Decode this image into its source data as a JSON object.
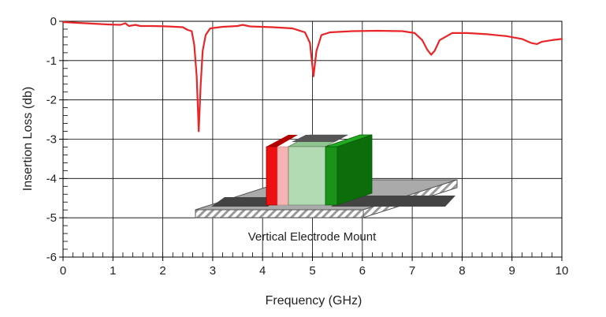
{
  "chart_data": {
    "type": "line",
    "title": "",
    "xlabel": "Frequency (GHz)",
    "ylabel": "Insertion Loss (db)",
    "xlim": [
      0,
      10
    ],
    "ylim": [
      -6,
      0
    ],
    "x_ticks": [
      0,
      1,
      2,
      3,
      4,
      5,
      6,
      7,
      8,
      9,
      10
    ],
    "y_ticks": [
      0,
      -1,
      -2,
      -3,
      -4,
      -5,
      -6
    ],
    "grid": true,
    "legend": "none",
    "series": [
      {
        "color": "#e8262a",
        "points": [
          [
            0.0,
            -0.02
          ],
          [
            0.3,
            -0.04
          ],
          [
            0.6,
            -0.06
          ],
          [
            0.9,
            -0.08
          ],
          [
            1.15,
            -0.09
          ],
          [
            1.25,
            -0.05
          ],
          [
            1.32,
            -0.12
          ],
          [
            1.45,
            -0.09
          ],
          [
            1.55,
            -0.12
          ],
          [
            1.8,
            -0.12
          ],
          [
            2.1,
            -0.13
          ],
          [
            2.4,
            -0.15
          ],
          [
            2.5,
            -0.22
          ],
          [
            2.58,
            -0.25
          ],
          [
            2.63,
            -0.6
          ],
          [
            2.68,
            -1.4
          ],
          [
            2.72,
            -2.8
          ],
          [
            2.76,
            -1.6
          ],
          [
            2.8,
            -0.75
          ],
          [
            2.86,
            -0.35
          ],
          [
            2.95,
            -0.18
          ],
          [
            3.2,
            -0.14
          ],
          [
            3.5,
            -0.12
          ],
          [
            3.6,
            -0.09
          ],
          [
            3.75,
            -0.13
          ],
          [
            4.2,
            -0.15
          ],
          [
            4.6,
            -0.18
          ],
          [
            4.85,
            -0.28
          ],
          [
            4.95,
            -0.55
          ],
          [
            5.02,
            -1.4
          ],
          [
            5.08,
            -0.75
          ],
          [
            5.18,
            -0.35
          ],
          [
            5.35,
            -0.28
          ],
          [
            5.8,
            -0.25
          ],
          [
            6.3,
            -0.24
          ],
          [
            6.8,
            -0.25
          ],
          [
            7.05,
            -0.3
          ],
          [
            7.2,
            -0.48
          ],
          [
            7.3,
            -0.72
          ],
          [
            7.38,
            -0.85
          ],
          [
            7.45,
            -0.75
          ],
          [
            7.55,
            -0.48
          ],
          [
            7.8,
            -0.3
          ],
          [
            8.1,
            -0.3
          ],
          [
            8.5,
            -0.33
          ],
          [
            8.9,
            -0.38
          ],
          [
            9.2,
            -0.45
          ],
          [
            9.38,
            -0.55
          ],
          [
            9.5,
            -0.58
          ],
          [
            9.6,
            -0.52
          ],
          [
            9.8,
            -0.48
          ],
          [
            10.0,
            -0.45
          ]
        ]
      }
    ],
    "inset": {
      "label": "Vertical Electrode Mount",
      "colors": {
        "electrode_red": "#ee1111",
        "red_edge": "#b30000",
        "spacer_pink": "#f5b3b3",
        "sample_green": "#b3dbb3",
        "sample_green_top": "#8fc48f",
        "electrode_green": "#199419",
        "electrode_green_dark": "#0b6e0b",
        "substrate_gray": "#aaaaaa",
        "trace_dark": "#444444"
      }
    }
  }
}
